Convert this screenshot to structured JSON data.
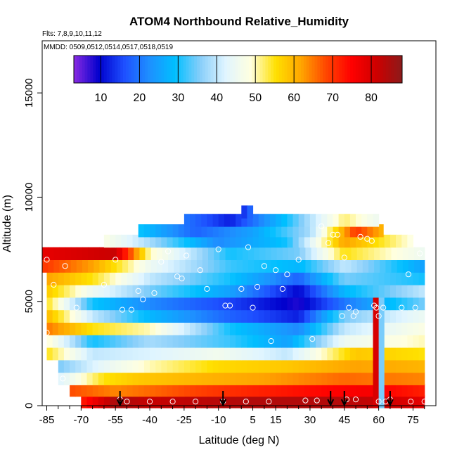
{
  "chart_data": {
    "type": "heatmap",
    "title": "ATOM4 Northbound Relative_Humidity",
    "flights_note": "Flts: 7,8,9,10,11,12",
    "mmdd_note": "MMDD: 0509,0512,0514,0517,0518,0519",
    "xlabel": "Latitude (deg N)",
    "ylabel": "Altitude (m)",
    "xlim": [
      -87,
      85
    ],
    "ylim": [
      0,
      17500
    ],
    "x_ticks": [
      -85,
      -70,
      -55,
      -40,
      -25,
      -10,
      5,
      15,
      30,
      45,
      60,
      75
    ],
    "x_minor_ticks": [
      -80,
      -75,
      -65,
      -60,
      -50,
      -45,
      -35,
      -30,
      -20,
      -15,
      -5,
      0,
      10,
      20,
      25,
      35,
      40,
      50,
      55,
      65,
      70,
      80
    ],
    "y_ticks": [
      0,
      5000,
      10000,
      15000
    ],
    "colorbar": {
      "range": [
        3,
        88
      ],
      "ticks": [
        10,
        20,
        30,
        40,
        50,
        60,
        70,
        80
      ],
      "colors": [
        "#8a2be2",
        "#0000cd",
        "#1e50ff",
        "#1e90ff",
        "#00bfff",
        "#87cefa",
        "#e0f5ff",
        "#ffffe0",
        "#ffe000",
        "#ffa500",
        "#ff4500",
        "#ff0000",
        "#cd0000",
        "#8b1a1a"
      ]
    },
    "layers": [
      {
        "alt": 200,
        "lat_min": -70,
        "lat_max": 80,
        "rh": [
          [
            -70,
            72
          ],
          [
            -55,
            85
          ],
          [
            -40,
            82
          ],
          [
            0,
            84
          ],
          [
            40,
            84
          ],
          [
            60,
            82
          ],
          [
            80,
            78
          ]
        ]
      },
      {
        "alt": 750,
        "lat_min": -75,
        "lat_max": 80,
        "rh": [
          [
            -75,
            68
          ],
          [
            -55,
            64
          ],
          [
            -40,
            66
          ],
          [
            -10,
            70
          ],
          [
            30,
            74
          ],
          [
            55,
            76
          ],
          [
            80,
            72
          ]
        ]
      },
      {
        "alt": 1300,
        "lat_min": -80,
        "lat_max": 80,
        "rh": [
          [
            -80,
            42
          ],
          [
            -60,
            55
          ],
          [
            -45,
            58
          ],
          [
            -20,
            60
          ],
          [
            10,
            62
          ],
          [
            45,
            66
          ],
          [
            80,
            64
          ]
        ]
      },
      {
        "alt": 1900,
        "lat_min": -80,
        "lat_max": 80,
        "rh": [
          [
            -80,
            35
          ],
          [
            -60,
            44
          ],
          [
            -40,
            50
          ],
          [
            -10,
            56
          ],
          [
            20,
            58
          ],
          [
            50,
            62
          ],
          [
            80,
            60
          ]
        ]
      },
      {
        "alt": 2500,
        "lat_min": -85,
        "lat_max": 80,
        "rh": [
          [
            -85,
            55
          ],
          [
            -65,
            40
          ],
          [
            -40,
            42
          ],
          [
            -10,
            46
          ],
          [
            20,
            40
          ],
          [
            50,
            58
          ],
          [
            80,
            55
          ]
        ]
      },
      {
        "alt": 3100,
        "lat_min": -85,
        "lat_max": 80,
        "rh": [
          [
            -85,
            50
          ],
          [
            -65,
            30
          ],
          [
            -40,
            38
          ],
          [
            -5,
            32
          ],
          [
            20,
            25
          ],
          [
            45,
            45
          ],
          [
            80,
            50
          ]
        ]
      },
      {
        "alt": 3700,
        "lat_min": -85,
        "lat_max": 80,
        "rh": [
          [
            -85,
            65
          ],
          [
            -65,
            55
          ],
          [
            -40,
            50
          ],
          [
            -5,
            30
          ],
          [
            25,
            22
          ],
          [
            45,
            40
          ],
          [
            80,
            48
          ]
        ]
      },
      {
        "alt": 4300,
        "lat_min": -85,
        "lat_max": 80,
        "rh": [
          [
            -85,
            60
          ],
          [
            -65,
            40
          ],
          [
            -40,
            28
          ],
          [
            -5,
            18
          ],
          [
            25,
            12
          ],
          [
            45,
            35
          ],
          [
            80,
            45
          ]
        ]
      },
      {
        "alt": 4900,
        "lat_min": -85,
        "lat_max": 80,
        "rh": [
          [
            -85,
            55
          ],
          [
            -65,
            30
          ],
          [
            -40,
            22
          ],
          [
            -5,
            15
          ],
          [
            25,
            8
          ],
          [
            45,
            20
          ],
          [
            80,
            35
          ]
        ]
      },
      {
        "alt": 5500,
        "lat_min": -85,
        "lat_max": 80,
        "rh": [
          [
            -85,
            58
          ],
          [
            -65,
            45
          ],
          [
            -40,
            35
          ],
          [
            -5,
            25
          ],
          [
            25,
            10
          ],
          [
            45,
            28
          ],
          [
            80,
            40
          ]
        ]
      },
      {
        "alt": 6100,
        "lat_min": -85,
        "lat_max": 80,
        "rh": [
          [
            -85,
            62
          ],
          [
            -65,
            55
          ],
          [
            -40,
            40
          ],
          [
            -5,
            30
          ],
          [
            25,
            18
          ],
          [
            45,
            35
          ],
          [
            80,
            30
          ]
        ]
      },
      {
        "alt": 6700,
        "lat_min": -87,
        "lat_max": 80,
        "rh": [
          [
            -87,
            70
          ],
          [
            -65,
            62
          ],
          [
            -40,
            45
          ],
          [
            -5,
            32
          ],
          [
            25,
            28
          ],
          [
            45,
            40
          ],
          [
            80,
            25
          ]
        ]
      },
      {
        "alt": 7300,
        "lat_min": -87,
        "lat_max": 80,
        "rh": [
          [
            -87,
            78
          ],
          [
            -55,
            82
          ],
          [
            -40,
            50
          ],
          [
            -5,
            30
          ],
          [
            25,
            35
          ],
          [
            45,
            55
          ],
          [
            80,
            45
          ]
        ]
      },
      {
        "alt": 7900,
        "lat_min": -60,
        "lat_max": 75,
        "rh": [
          [
            -60,
            48
          ],
          [
            -40,
            38
          ],
          [
            -10,
            22
          ],
          [
            20,
            30
          ],
          [
            45,
            62
          ],
          [
            75,
            48
          ]
        ]
      },
      {
        "alt": 8400,
        "lat_min": -45,
        "lat_max": 62,
        "rh": [
          [
            -45,
            30
          ],
          [
            -20,
            18
          ],
          [
            5,
            25
          ],
          [
            30,
            38
          ],
          [
            50,
            70
          ],
          [
            62,
            60
          ]
        ]
      },
      {
        "alt": 8900,
        "lat_min": -25,
        "lat_max": 60,
        "rh": [
          [
            -25,
            20
          ],
          [
            -5,
            12
          ],
          [
            20,
            30
          ],
          [
            45,
            52
          ],
          [
            60,
            45
          ]
        ]
      },
      {
        "alt": 9300,
        "lat_min": 0,
        "lat_max": 5,
        "rh": [
          [
            0,
            12
          ],
          [
            5,
            20
          ]
        ]
      }
    ],
    "profile_points": [
      [
        -85,
        3500
      ],
      [
        -85,
        7000
      ],
      [
        -82,
        5800
      ],
      [
        -78,
        1300
      ],
      [
        -77,
        6700
      ],
      [
        -72,
        4700
      ],
      [
        -60,
        5800
      ],
      [
        -55,
        7000
      ],
      [
        -53,
        300
      ],
      [
        -52,
        4600
      ],
      [
        -50,
        200
      ],
      [
        -48,
        4600
      ],
      [
        -45,
        5500
      ],
      [
        -43,
        5100
      ],
      [
        -40,
        200
      ],
      [
        -38,
        5400
      ],
      [
        -35,
        6900
      ],
      [
        -32,
        7400
      ],
      [
        -30,
        200
      ],
      [
        -28,
        6200
      ],
      [
        -26,
        6100
      ],
      [
        -24,
        7200
      ],
      [
        -20,
        200
      ],
      [
        -18,
        6500
      ],
      [
        -15,
        5600
      ],
      [
        -10,
        7500
      ],
      [
        -8,
        200
      ],
      [
        -7,
        4800
      ],
      [
        -5,
        4800
      ],
      [
        -3,
        9400
      ],
      [
        0,
        5600
      ],
      [
        2,
        200
      ],
      [
        3,
        7600
      ],
      [
        5,
        4700
      ],
      [
        7,
        5700
      ],
      [
        10,
        6700
      ],
      [
        12,
        200
      ],
      [
        13,
        3100
      ],
      [
        15,
        6500
      ],
      [
        18,
        5600
      ],
      [
        20,
        6300
      ],
      [
        25,
        7000
      ],
      [
        28,
        250
      ],
      [
        31,
        3200
      ],
      [
        33,
        250
      ],
      [
        35,
        8600
      ],
      [
        38,
        7800
      ],
      [
        40,
        8200
      ],
      [
        42,
        8200
      ],
      [
        44,
        4300
      ],
      [
        45,
        7100
      ],
      [
        46,
        300
      ],
      [
        47,
        4700
      ],
      [
        49,
        4300
      ],
      [
        50,
        4500
      ],
      [
        50,
        300
      ],
      [
        52,
        8100
      ],
      [
        55,
        8000
      ],
      [
        57,
        7900
      ],
      [
        58,
        4800
      ],
      [
        59,
        4700
      ],
      [
        60,
        4300
      ],
      [
        60,
        200
      ],
      [
        62,
        4700
      ],
      [
        63,
        200
      ],
      [
        65,
        300
      ],
      [
        70,
        4700
      ],
      [
        73,
        6300
      ],
      [
        74,
        200
      ],
      [
        76,
        4700
      ],
      [
        78,
        7300
      ],
      [
        80,
        200
      ]
    ],
    "arrows_lat": [
      -53,
      -8,
      39,
      45,
      65
    ]
  }
}
